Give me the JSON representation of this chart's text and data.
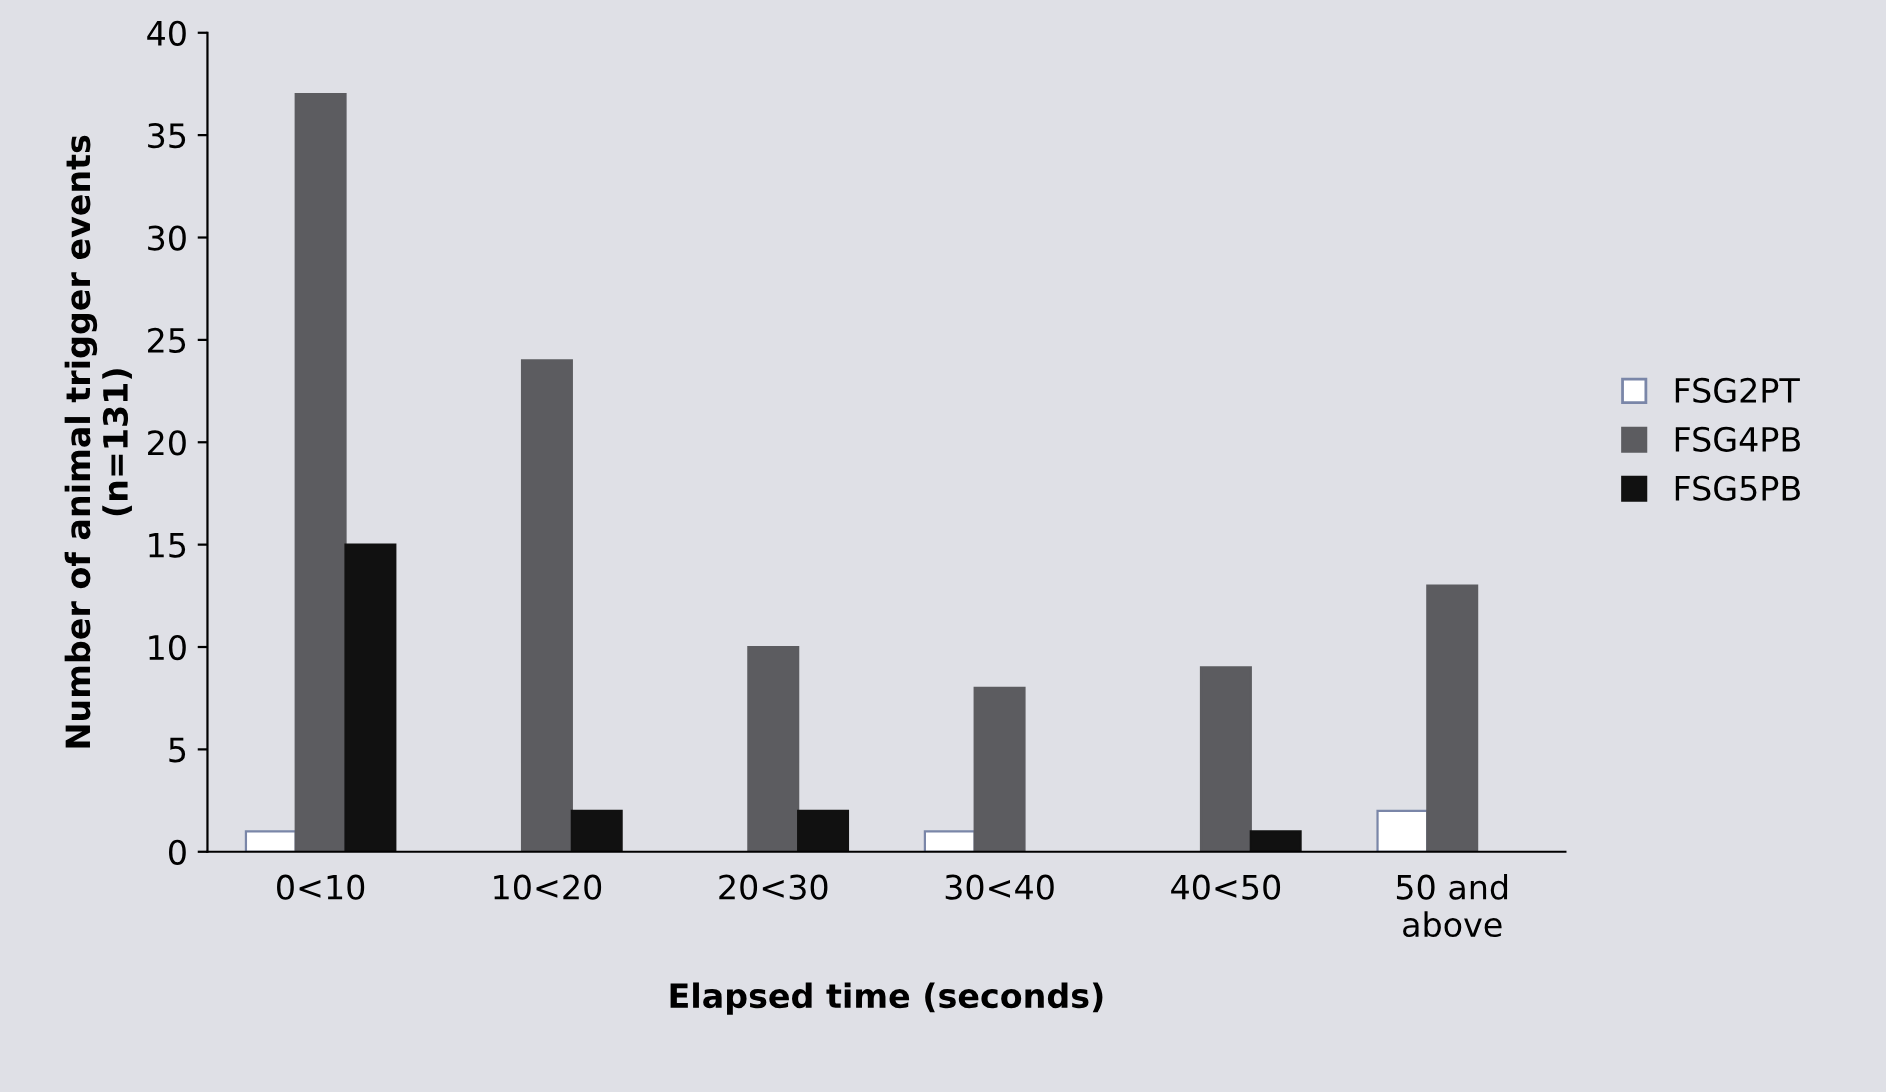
{
  "chart_data": {
    "type": "bar",
    "xlabel": "Elapsed time (seconds)",
    "ylabel": "Number of animal trigger events\n(n=131)",
    "categories": [
      "0<10",
      "10<20",
      "20<30",
      "30<40",
      "40<50",
      "50 and\nabove"
    ],
    "series": [
      {
        "name": "FSG2PT",
        "color": "#ffffff",
        "values": [
          1,
          0,
          0,
          1,
          0,
          2
        ]
      },
      {
        "name": "FSG4PB",
        "color": "#5c5c60",
        "values": [
          37,
          24,
          10,
          8,
          9,
          13
        ]
      },
      {
        "name": "FSG5PB",
        "color": "#111111",
        "values": [
          15,
          2,
          2,
          0,
          1,
          0
        ]
      }
    ],
    "ylim": [
      0,
      40
    ],
    "yticks": [
      0,
      5,
      10,
      15,
      20,
      25,
      30,
      35,
      40
    ],
    "grid": false,
    "legend": "right"
  }
}
